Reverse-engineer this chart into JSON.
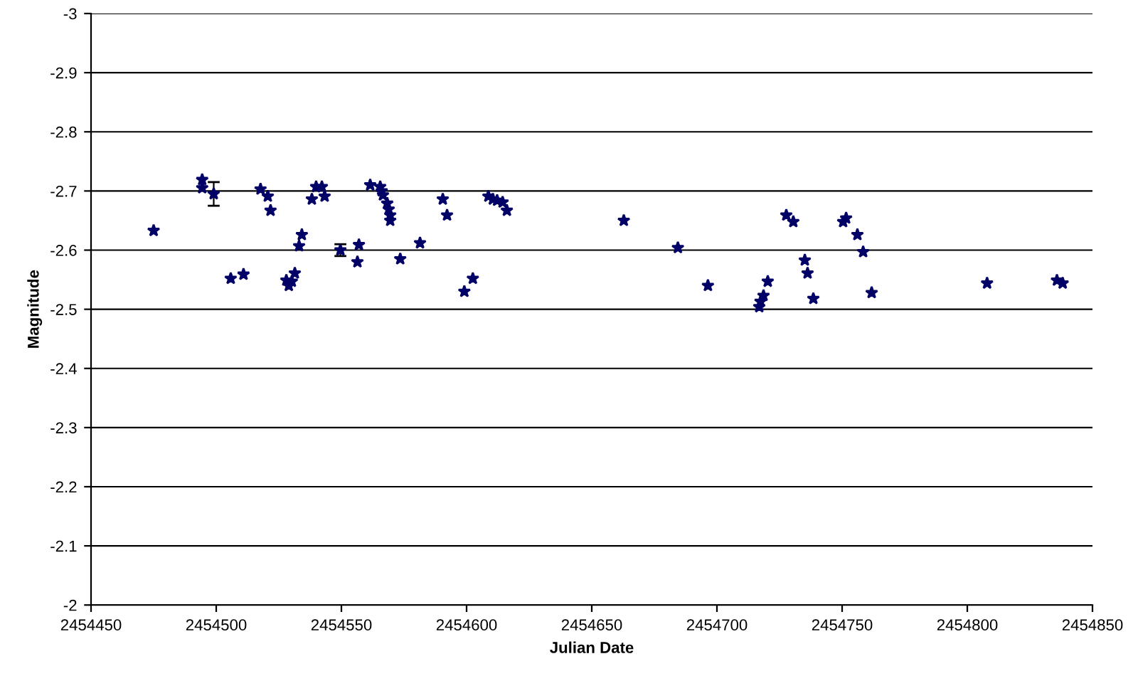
{
  "chart_data": {
    "type": "scatter",
    "xlabel": "Julian Date",
    "ylabel": "Magnitude",
    "x": [
      2454475,
      2454494.4,
      2454494.4,
      2454499,
      2454505.8,
      2454510.9,
      2454517.7,
      2454520.6,
      2454521.7,
      2454534.2,
      2454533.1,
      2454528,
      2454529,
      2454530.2,
      2454531.4,
      2454538.2,
      2454539.9,
      2454542.2,
      2454543.3,
      2454549.6,
      2454556.4,
      2454557,
      2454561.5,
      2454565.5,
      2454566.1,
      2454566.6,
      2454568.3,
      2454568.9,
      2454569.5,
      2454569.5,
      2454573.5,
      2454581.4,
      2454590.5,
      2454592.2,
      2454599.1,
      2454602.5,
      2454608.7,
      2454610.5,
      2454612.2,
      2454614.4,
      2454616.1,
      2454662.8,
      2454684.4,
      2454696.4,
      2454720.3,
      2454718.6,
      2454717.4,
      2454716.9,
      2454727.7,
      2454730.5,
      2454735.1,
      2454736.2,
      2454738.5,
      2454750.4,
      2454751.6,
      2454756.1,
      2454758.4,
      2454761.8,
      2454807.9,
      2454835.8,
      2454838.1
    ],
    "values": [
      -2.633,
      -2.719,
      -2.705,
      -2.695,
      -2.552,
      -2.559,
      -2.703,
      -2.691,
      -2.667,
      -2.626,
      -2.607,
      -2.549,
      -2.54,
      -2.547,
      -2.561,
      -2.686,
      -2.707,
      -2.707,
      -2.691,
      -2.6,
      -2.58,
      -2.609,
      -2.71,
      -2.707,
      -2.7,
      -2.693,
      -2.679,
      -2.669,
      -2.659,
      -2.65,
      -2.585,
      -2.612,
      -2.686,
      -2.659,
      -2.53,
      -2.552,
      -2.691,
      -2.686,
      -2.684,
      -2.681,
      -2.667,
      -2.65,
      -2.604,
      -2.54,
      -2.547,
      -2.523,
      -2.513,
      -2.504,
      -2.659,
      -2.648,
      -2.583,
      -2.561,
      -2.518,
      -2.648,
      -2.654,
      -2.626,
      -2.597,
      -2.528,
      -2.544,
      -2.549,
      -2.544
    ],
    "errors": [
      null,
      null,
      null,
      0.02,
      null,
      null,
      null,
      null,
      null,
      null,
      null,
      null,
      null,
      null,
      null,
      null,
      null,
      null,
      null,
      0.01,
      null,
      null,
      null,
      null,
      null,
      null,
      null,
      null,
      null,
      null,
      null,
      null,
      null,
      null,
      null,
      null,
      null,
      null,
      null,
      null,
      null,
      null,
      null,
      null,
      null,
      null,
      null,
      null,
      null,
      null,
      null,
      null,
      null,
      null,
      null,
      null,
      null,
      null,
      null,
      null,
      null
    ],
    "color": "#000066",
    "marker": "star",
    "xlim": [
      2454450,
      2454850
    ],
    "xticks": [
      2454450,
      2454500,
      2454550,
      2454600,
      2454650,
      2454700,
      2454750,
      2454800,
      2454850
    ],
    "ylim": [
      -2,
      -3
    ],
    "yticks": [
      -2,
      -2.1,
      -2.2,
      -2.3,
      -2.4,
      -2.5,
      -2.6,
      -2.7,
      -2.8,
      -2.9,
      -3
    ],
    "grid": "y"
  }
}
